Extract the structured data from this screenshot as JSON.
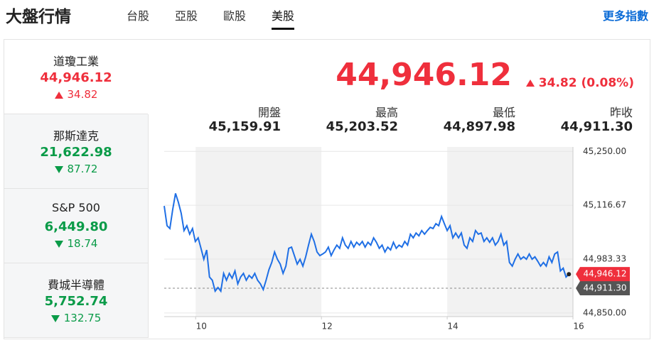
{
  "header": {
    "title": "大盤行情",
    "tabs": [
      "台股",
      "亞股",
      "歐股",
      "美股"
    ],
    "active_tab": 3,
    "more_link": "更多指數"
  },
  "indices": [
    {
      "name": "道瓊工業",
      "value": "44,946.12",
      "change": "34.82",
      "direction": "up",
      "selected": true
    },
    {
      "name": "那斯達克",
      "value": "21,622.98",
      "change": "87.72",
      "direction": "down",
      "selected": false
    },
    {
      "name": "S&P 500",
      "value": "6,449.80",
      "change": "18.74",
      "direction": "down",
      "selected": false
    },
    {
      "name": "費城半導體",
      "value": "5,752.74",
      "change": "132.75",
      "direction": "down",
      "selected": false
    }
  ],
  "quote": {
    "price": "44,946.12",
    "change": "34.82 (0.08%)",
    "direction": "up",
    "stats": [
      {
        "label": "開盤",
        "value": "45,159.91"
      },
      {
        "label": "最高",
        "value": "45,203.52"
      },
      {
        "label": "最低",
        "value": "44,897.98"
      },
      {
        "label": "昨收",
        "value": "44,911.30"
      }
    ]
  },
  "chart_data": {
    "type": "line",
    "x": [
      9.5,
      9.545,
      9.59,
      9.635,
      9.68,
      9.725,
      9.77,
      9.815,
      9.86,
      9.905,
      9.95,
      9.995,
      10.04,
      10.085,
      10.13,
      10.175,
      10.22,
      10.265,
      10.31,
      10.355,
      10.4,
      10.445,
      10.49,
      10.535,
      10.58,
      10.625,
      10.67,
      10.715,
      10.76,
      10.805,
      10.85,
      10.895,
      10.94,
      10.985,
      11.03,
      11.075,
      11.12,
      11.165,
      11.21,
      11.255,
      11.3,
      11.345,
      11.39,
      11.435,
      11.48,
      11.525,
      11.57,
      11.615,
      11.66,
      11.705,
      11.75,
      11.795,
      11.84,
      11.885,
      11.93,
      11.975,
      12.02,
      12.065,
      12.11,
      12.155,
      12.2,
      12.245,
      12.29,
      12.335,
      12.38,
      12.425,
      12.47,
      12.515,
      12.56,
      12.605,
      12.65,
      12.695,
      12.74,
      12.785,
      12.83,
      12.875,
      12.92,
      12.965,
      13.01,
      13.055,
      13.1,
      13.145,
      13.19,
      13.235,
      13.28,
      13.325,
      13.37,
      13.415,
      13.46,
      13.505,
      13.55,
      13.595,
      13.64,
      13.685,
      13.73,
      13.775,
      13.82,
      13.865,
      13.91,
      13.955,
      14.0,
      14.045,
      14.09,
      14.135,
      14.18,
      14.225,
      14.27,
      14.315,
      14.36,
      14.405,
      14.45,
      14.495,
      14.54,
      14.585,
      14.63,
      14.675,
      14.72,
      14.765,
      14.81,
      14.855,
      14.9,
      14.945,
      14.99,
      15.035,
      15.08,
      15.125,
      15.17,
      15.215,
      15.26,
      15.305,
      15.35,
      15.395,
      15.44,
      15.485,
      15.53,
      15.575,
      15.62,
      15.665,
      15.71,
      15.755,
      15.8,
      15.845,
      15.89,
      15.935
    ],
    "series": [
      {
        "color": "#1f6fe5",
        "values": [
          45115,
          45066,
          45059,
          45106,
          45146,
          45124,
          45097,
          45054,
          45066,
          45045,
          45059,
          45027,
          45036,
          45010,
          44983,
          45006,
          44939,
          44931,
          44904,
          44913,
          44904,
          44948,
          44931,
          44948,
          44936,
          44954,
          44922,
          44939,
          44948,
          44931,
          44943,
          44936,
          44948,
          44931,
          44922,
          44908,
          44931,
          44957,
          44975,
          45001,
          44983,
          44971,
          44948,
          44966,
          45010,
          45013,
          44992,
          44971,
          44983,
          44966,
          44989,
          45018,
          45045,
          45027,
          45001,
          44992,
          44996,
          45001,
          45013,
          44992,
          45006,
          45018,
          45010,
          45036,
          45018,
          45010,
          45027,
          45013,
          45025,
          45018,
          45027,
          45013,
          45025,
          45018,
          45036,
          45025,
          45010,
          45018,
          45001,
          45013,
          45006,
          45025,
          45010,
          45018,
          45013,
          45027,
          45018,
          45045,
          45036,
          45048,
          45041,
          45054,
          45045,
          45054,
          45062,
          45059,
          45071,
          45066,
          45089,
          45071,
          45054,
          45066,
          45036,
          45048,
          45036,
          45048,
          45018,
          45010,
          45036,
          45027,
          45054,
          45045,
          45048,
          45027,
          45036,
          45025,
          45036,
          45018,
          45027,
          45045,
          45018,
          45027,
          44975,
          44966,
          44983,
          44996,
          44983,
          44989,
          44983,
          44996,
          44983,
          44989,
          44978,
          44966,
          44975,
          44966,
          44989,
          44975,
          44996,
          45001,
          44954,
          44961,
          44939,
          44946
        ]
      }
    ],
    "xlim": [
      9.5,
      16
    ],
    "xticks": [
      10,
      12,
      14,
      16
    ],
    "ylim": [
      44841,
      45261
    ],
    "yticks": [
      {
        "value": 45250,
        "label": "45,250.00"
      },
      {
        "value": 45116.67,
        "label": "45,116.67"
      },
      {
        "value": 44983.33,
        "label": "44,983.33"
      },
      {
        "value": 44850,
        "label": "44,850.00"
      }
    ],
    "grid": true,
    "last": {
      "value": 44946.12,
      "label": "44,946.12",
      "color": "#ef2f3c"
    },
    "reference": {
      "value": 44911.3,
      "label": "44,911.30",
      "color": "#555555"
    }
  }
}
